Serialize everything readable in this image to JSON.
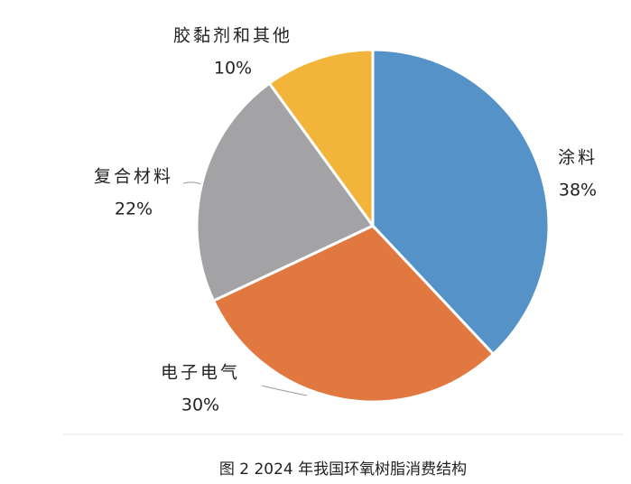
{
  "chart_data": {
    "type": "pie",
    "title": "图 2  2024 年我国环氧树脂消费结构",
    "categories": [
      "涂料",
      "电子电气",
      "复合材料",
      "胶黏剂和其他"
    ],
    "values": [
      38,
      30,
      22,
      10
    ],
    "value_labels": [
      "38%",
      "30%",
      "22%",
      "10%"
    ],
    "colors": [
      "#5592c8",
      "#e07840",
      "#a3a3a6",
      "#f2b43a"
    ]
  }
}
